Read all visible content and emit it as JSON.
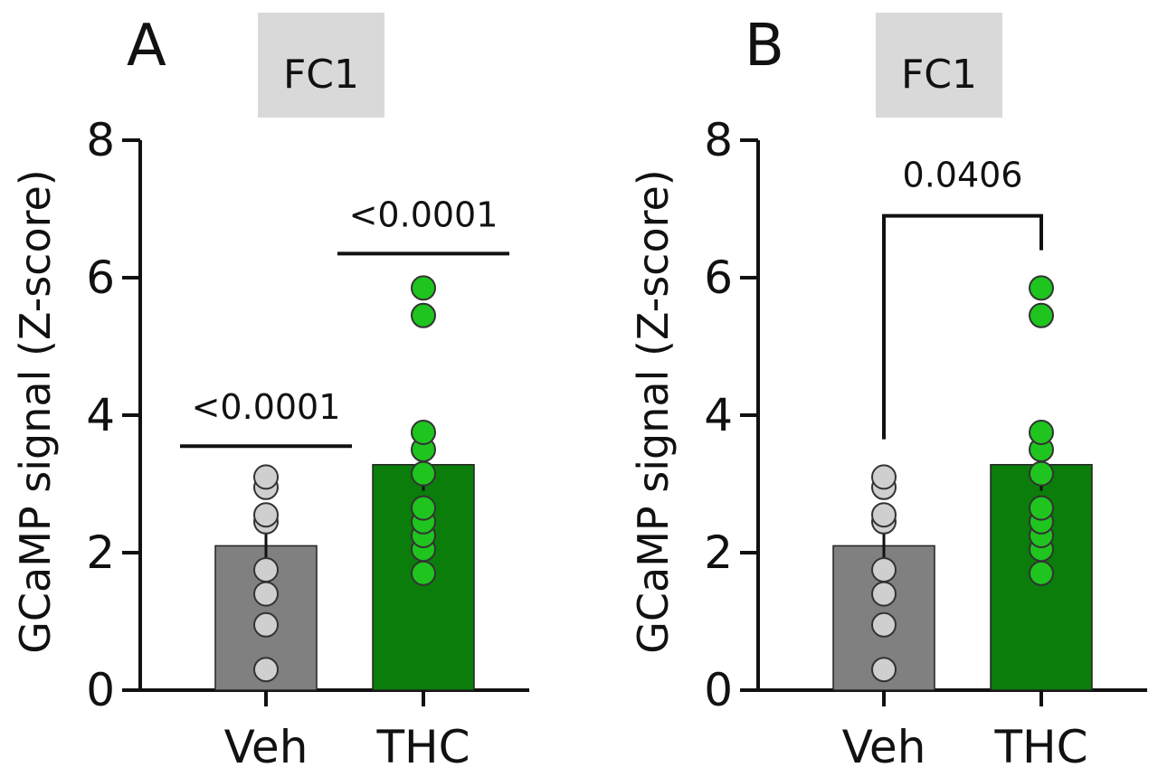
{
  "chart_data": [
    {
      "type": "bar",
      "panel": "A",
      "title": "FC1",
      "ylabel": "GCaMP signal (Z-score)",
      "xlabel": "",
      "ylim": [
        0,
        8
      ],
      "yticks": [
        0,
        2,
        4,
        6,
        8
      ],
      "categories": [
        "Veh",
        "THC"
      ],
      "series": [
        {
          "values": [
            2.1,
            3.28
          ],
          "sem": [
            0.42,
            0.38
          ],
          "colors": [
            "#808080",
            "#0a7d0a"
          ],
          "points": [
            [
              0.3,
              0.95,
              1.4,
              1.75,
              2.45,
              2.55,
              2.95,
              3.1
            ],
            [
              1.7,
              2.05,
              2.25,
              2.45,
              2.65,
              3.15,
              3.5,
              3.75,
              5.45,
              5.85
            ]
          ],
          "point_colors": [
            "#cfcfcf",
            "#1fc41f"
          ]
        }
      ],
      "annotations": [
        {
          "text": "<0.0001",
          "type": "line",
          "x_from": "Veh",
          "x_to": "Veh",
          "y": 3.55
        },
        {
          "text": "<0.0001",
          "type": "line",
          "x_from": "THC",
          "x_to": "THC",
          "y": 6.35
        }
      ],
      "grid": false
    },
    {
      "type": "bar",
      "panel": "B",
      "title": "FC1",
      "ylabel": "GCaMP signal (Z-score)",
      "xlabel": "",
      "ylim": [
        0,
        8
      ],
      "yticks": [
        0,
        2,
        4,
        6,
        8
      ],
      "categories": [
        "Veh",
        "THC"
      ],
      "series": [
        {
          "values": [
            2.1,
            3.28
          ],
          "sem": [
            0.42,
            0.38
          ],
          "colors": [
            "#808080",
            "#0a7d0a"
          ],
          "points": [
            [
              0.3,
              0.95,
              1.4,
              1.75,
              2.45,
              2.55,
              2.95,
              3.1
            ],
            [
              1.7,
              2.05,
              2.25,
              2.45,
              2.65,
              3.15,
              3.5,
              3.75,
              5.45,
              5.85
            ]
          ],
          "point_colors": [
            "#cfcfcf",
            "#1fc41f"
          ]
        }
      ],
      "annotations": [
        {
          "text": "0.0406",
          "type": "bracket",
          "x_from": "Veh",
          "x_to": "THC",
          "y": 6.9
        }
      ],
      "grid": false
    }
  ]
}
